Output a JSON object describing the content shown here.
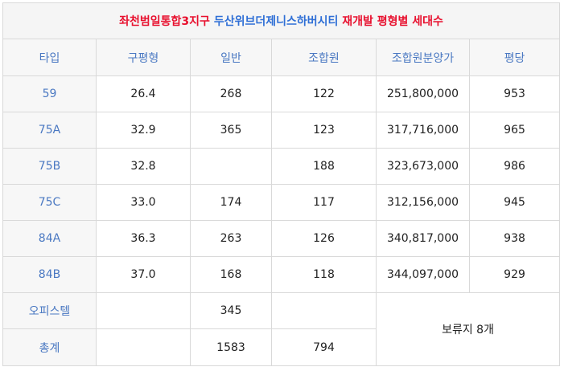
{
  "title": {
    "part1": "좌천범일통합3지구",
    "part2": "두산위브더제니스하버시티",
    "part3": "재개발 평형별 세대수"
  },
  "colors": {
    "red": "#e8102e",
    "blue": "#2f6fd6",
    "header_text": "#4a78c2"
  },
  "headers": [
    "타입",
    "구평형",
    "일반",
    "조합원",
    "조합원분양가",
    "평당"
  ],
  "rows": [
    {
      "type": "59",
      "old_pyeong": "26.4",
      "general": "268",
      "member": "122",
      "member_price": "251,800,000",
      "per_pyeong": "953"
    },
    {
      "type": "75A",
      "old_pyeong": "32.9",
      "general": "365",
      "member": "123",
      "member_price": "317,716,000",
      "per_pyeong": "965"
    },
    {
      "type": "75B",
      "old_pyeong": "32.8",
      "general": "",
      "member": "188",
      "member_price": "323,673,000",
      "per_pyeong": "986"
    },
    {
      "type": "75C",
      "old_pyeong": "33.0",
      "general": "174",
      "member": "117",
      "member_price": "312,156,000",
      "per_pyeong": "945"
    },
    {
      "type": "84A",
      "old_pyeong": "36.3",
      "general": "263",
      "member": "126",
      "member_price": "340,817,000",
      "per_pyeong": "938"
    },
    {
      "type": "84B",
      "old_pyeong": "37.0",
      "general": "168",
      "member": "118",
      "member_price": "344,097,000",
      "per_pyeong": "929"
    }
  ],
  "officetel": {
    "label": "오피스텔",
    "general": "345"
  },
  "total": {
    "label": "총계",
    "general": "1583",
    "member": "794"
  },
  "reserved": "보류지 8개"
}
